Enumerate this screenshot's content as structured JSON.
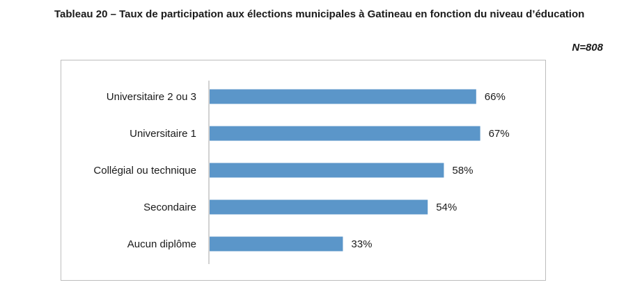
{
  "header": {
    "title": "Tableau 20 – Taux de participation aux élections municipales à Gatineau en fonction du niveau d’éducation",
    "sample_note": "N=808"
  },
  "chart_data": {
    "type": "bar",
    "orientation": "horizontal",
    "categories": [
      "Universitaire 2 ou 3",
      "Universitaire 1",
      "Collégial ou technique",
      "Secondaire",
      "Aucun diplôme"
    ],
    "values": [
      66,
      67,
      58,
      54,
      33
    ],
    "value_labels": [
      "66%",
      "67%",
      "58%",
      "54%",
      "33%"
    ],
    "xlim": [
      0,
      100
    ],
    "grid": false,
    "legend": "none",
    "bar_color": "#5b96c9"
  }
}
